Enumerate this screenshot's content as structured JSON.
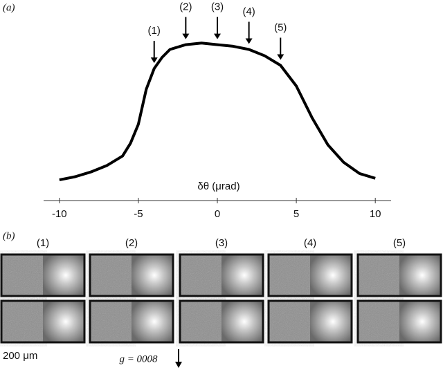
{
  "panel_a_label": "(a)",
  "chart_data": {
    "type": "line",
    "x_label": "δθ (μrad)",
    "x": [
      -10,
      -9,
      -8,
      -7,
      -6,
      -5.5,
      -5,
      -4.5,
      -4,
      -3.5,
      -3,
      -2,
      -1,
      0,
      1,
      2,
      3,
      4,
      5,
      6,
      7,
      8,
      9,
      10
    ],
    "values": [
      0.13,
      0.15,
      0.18,
      0.22,
      0.28,
      0.36,
      0.48,
      0.7,
      0.83,
      0.9,
      0.95,
      0.98,
      0.99,
      0.98,
      0.97,
      0.95,
      0.91,
      0.85,
      0.72,
      0.52,
      0.35,
      0.24,
      0.17,
      0.14
    ],
    "color": "#000000",
    "xlim": [
      -11,
      11
    ],
    "xticks": [
      -10,
      -5,
      0,
      5,
      10
    ],
    "ylim": [
      0,
      1
    ],
    "annotations": [
      {
        "label": "(1)",
        "x": -4
      },
      {
        "label": "(2)",
        "x": -2
      },
      {
        "label": "(3)",
        "x": 0
      },
      {
        "label": "(4)",
        "x": 2
      },
      {
        "label": "(5)",
        "x": 4
      }
    ]
  },
  "panel_b": {
    "label": "(b)",
    "columns": [
      "(1)",
      "(2)",
      "(3)",
      "(4)",
      "(5)"
    ],
    "scale_bar": "200 μm",
    "g_vector": "g = 0008"
  }
}
